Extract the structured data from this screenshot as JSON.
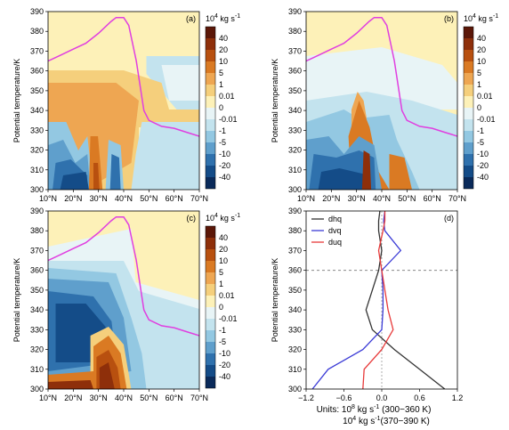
{
  "figure": {
    "units_line1_prefix": "Units: 10",
    "units_line1_exp": "8",
    "units_line1_suffix": " kg s",
    "units_line1_exp2": "-1",
    "units_line1_tail": "(300−360 K)",
    "units_line2_prefix": "10",
    "units_line2_exp": "4",
    "units_line2_suffix": " kg s",
    "units_line2_exp2": "-1",
    "units_line2_tail": "(370−390 K)"
  },
  "colorbar": {
    "unit_base": "10",
    "unit_exp": "4",
    "unit_rest": " kg s",
    "unit_exp2": "-1",
    "labels": [
      "40",
      "20",
      "10",
      "5",
      "1",
      "0.01",
      "0",
      "-0.01",
      "-1",
      "-5",
      "-10",
      "-20",
      "-40"
    ],
    "colors": [
      "#5b1708",
      "#8e2f0a",
      "#b8500f",
      "#da7a23",
      "#eea652",
      "#f5cf7c",
      "#fdf1b8",
      "#e8f4f6",
      "#c3e3ee",
      "#93c8e2",
      "#5f9fcc",
      "#2f71ad",
      "#144c88",
      "#0a2a5a"
    ]
  },
  "chart_data": [
    {
      "type": "heatmap",
      "panel": "(a)",
      "ylabel": "Potential temperature/K",
      "xticks": [
        "10°N",
        "20°N",
        "30°N",
        "40°N",
        "50°N",
        "60°N",
        "70°N"
      ],
      "yticks": [
        "300",
        "310",
        "320",
        "330",
        "340",
        "350",
        "360",
        "370",
        "380",
        "390"
      ],
      "xlim": [
        10,
        70
      ],
      "ylim": [
        300,
        390
      ],
      "tropopause_line": {
        "color": "#e03fe0",
        "x": [
          10,
          15,
          20,
          25,
          30,
          35,
          37,
          40,
          42,
          45,
          48,
          50,
          55,
          60,
          65,
          70
        ],
        "y": [
          365,
          368,
          371,
          374,
          379,
          385,
          387,
          387,
          383,
          365,
          340,
          335,
          332,
          331,
          329,
          327
        ]
      }
    },
    {
      "type": "heatmap",
      "panel": "(b)",
      "ylabel": "Potential temperature/K",
      "xticks": [
        "10°N",
        "20°N",
        "30°N",
        "40°N",
        "50°N",
        "60°N",
        "70°N"
      ],
      "yticks": [
        "300",
        "310",
        "320",
        "330",
        "340",
        "350",
        "360",
        "370",
        "380",
        "390"
      ],
      "xlim": [
        10,
        70
      ],
      "ylim": [
        300,
        390
      ],
      "tropopause_line": {
        "color": "#e03fe0",
        "x": [
          10,
          15,
          20,
          25,
          30,
          35,
          37,
          40,
          42,
          45,
          48,
          50,
          55,
          60,
          65,
          70
        ],
        "y": [
          365,
          368,
          371,
          374,
          379,
          385,
          387,
          387,
          383,
          365,
          340,
          335,
          332,
          331,
          329,
          327
        ]
      }
    },
    {
      "type": "heatmap",
      "panel": "(c)",
      "ylabel": "Potential temperature/K",
      "xticks": [
        "10°N",
        "20°N",
        "30°N",
        "40°N",
        "50°N",
        "60°N",
        "70°N"
      ],
      "yticks": [
        "300",
        "310",
        "320",
        "330",
        "340",
        "350",
        "360",
        "370",
        "380",
        "390"
      ],
      "xlim": [
        10,
        70
      ],
      "ylim": [
        300,
        390
      ],
      "tropopause_line": {
        "color": "#e03fe0",
        "x": [
          10,
          15,
          20,
          25,
          30,
          35,
          37,
          40,
          42,
          45,
          48,
          50,
          55,
          60,
          65,
          70
        ],
        "y": [
          365,
          368,
          371,
          374,
          379,
          385,
          387,
          387,
          383,
          365,
          340,
          335,
          332,
          331,
          329,
          327
        ]
      }
    },
    {
      "type": "line",
      "panel": "(d)",
      "ylabel": "Potential temperature/K",
      "xticks": [
        "−1.2",
        "−0.6",
        "0.0",
        "0.6",
        "1.2"
      ],
      "yticks": [
        "300",
        "310",
        "320",
        "330",
        "340",
        "350",
        "360",
        "370",
        "380",
        "390"
      ],
      "xlim": [
        -1.2,
        1.2
      ],
      "ylim": [
        300,
        390
      ],
      "hline": 360,
      "vline": 0,
      "series": [
        {
          "name": "dhq",
          "color": "#333333",
          "x": [
            1.0,
            0.6,
            0.2,
            -0.15,
            -0.25,
            -0.15,
            -0.05,
            0.0,
            -0.05,
            -0.05,
            -0.03
          ],
          "y": [
            300,
            310,
            320,
            330,
            340,
            350,
            360,
            370,
            380,
            385,
            390
          ]
        },
        {
          "name": "dvq",
          "color": "#3b3bd6",
          "x": [
            -1.1,
            -0.85,
            -0.3,
            0.0,
            0.02,
            0.02,
            0.0,
            0.3,
            0.05,
            0.03,
            0.05
          ],
          "y": [
            300,
            310,
            320,
            330,
            340,
            350,
            360,
            370,
            380,
            385,
            390
          ]
        },
        {
          "name": "duq",
          "color": "#e83a3a",
          "x": [
            -0.3,
            -0.28,
            0.0,
            0.18,
            0.1,
            0.05,
            0.0,
            -0.05,
            0.02,
            0.05,
            0.05
          ],
          "y": [
            300,
            310,
            320,
            330,
            340,
            350,
            360,
            370,
            380,
            385,
            390
          ]
        }
      ]
    }
  ]
}
